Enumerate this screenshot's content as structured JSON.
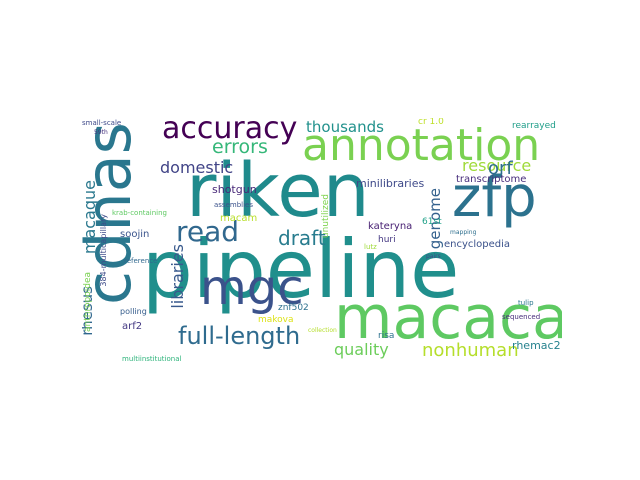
{
  "word_cloud": {
    "words": [
      {
        "text": "riken",
        "color": "#1f8a8c"
      },
      {
        "text": "pipeline",
        "color": "#208f8c"
      },
      {
        "text": "cdnas",
        "color": "#2a778e"
      },
      {
        "text": "macaca",
        "color": "#5ec962"
      },
      {
        "text": "annotation",
        "color": "#7ad151"
      },
      {
        "text": "zfp",
        "color": "#2c728e"
      },
      {
        "text": "mgc",
        "color": "#3b528b"
      },
      {
        "text": "accuracy",
        "color": "#440154"
      },
      {
        "text": "full-length",
        "color": "#2f6b8e"
      },
      {
        "text": "read",
        "color": "#31688e"
      },
      {
        "text": "draft",
        "color": "#287c8e"
      },
      {
        "text": "nonhuman",
        "color": "#b5de2b"
      },
      {
        "text": "errors",
        "color": "#35b779"
      },
      {
        "text": "resource",
        "color": "#9fda3a"
      },
      {
        "text": "thousands",
        "color": "#21918c"
      },
      {
        "text": "domestic",
        "color": "#414487"
      },
      {
        "text": "macaque",
        "color": "#2a788e"
      },
      {
        "text": "libraries",
        "color": "#38598c"
      },
      {
        "text": "rhesus",
        "color": "#31688e"
      },
      {
        "text": "quality",
        "color": "#6ccd5a"
      },
      {
        "text": "genome",
        "color": "#34618d"
      },
      {
        "text": "orf",
        "color": "#2e6e8e"
      },
      {
        "text": "shotgun",
        "color": "#482878"
      },
      {
        "text": "minilibraries",
        "color": "#3e4989"
      },
      {
        "text": "rhemac2",
        "color": "#26828e"
      },
      {
        "text": "transcriptome",
        "color": "#472d7b"
      },
      {
        "text": "encyclopedia",
        "color": "#3b528b"
      },
      {
        "text": "kateryna",
        "color": "#482173"
      },
      {
        "text": "macam",
        "color": "#b8de29"
      },
      {
        "text": "soojin",
        "color": "#3a548c"
      },
      {
        "text": "huri",
        "color": "#453882"
      },
      {
        "text": "risa",
        "color": "#2c728e"
      },
      {
        "text": "unutilized",
        "color": "#7fd34e"
      },
      {
        "text": "rearrayed",
        "color": "#1f9e89"
      },
      {
        "text": "61st",
        "color": "#1fa188"
      },
      {
        "text": "cr 1.0",
        "color": "#bddf26"
      },
      {
        "text": "znf502",
        "color": "#2d708e"
      },
      {
        "text": "makova",
        "color": "#dde318"
      },
      {
        "text": "arf2",
        "color": "#443983"
      },
      {
        "text": "anthropoidea",
        "color": "#7ad151"
      },
      {
        "text": "384-multicapillary",
        "color": "#3e4c8a"
      },
      {
        "text": "sequenced",
        "color": "#472c7a"
      },
      {
        "text": "tulip",
        "color": "#2a778e"
      },
      {
        "text": "polling",
        "color": "#365d8d"
      },
      {
        "text": "small-scale",
        "color": "#3e4989"
      },
      {
        "text": "krab-containing",
        "color": "#5ec962"
      },
      {
        "text": "reference",
        "color": "#31688e"
      },
      {
        "text": "lutz",
        "color": "#9fda3a"
      },
      {
        "text": "assemblies",
        "color": "#3b528b"
      },
      {
        "text": "multiinstitutional",
        "color": "#2fb47c"
      },
      {
        "text": "59th",
        "color": "#46327e"
      },
      {
        "text": "mapping",
        "color": "#2e6f8e"
      },
      {
        "text": "pairs",
        "color": "#3f4788"
      },
      {
        "text": "collection",
        "color": "#b5de2b"
      }
    ]
  }
}
